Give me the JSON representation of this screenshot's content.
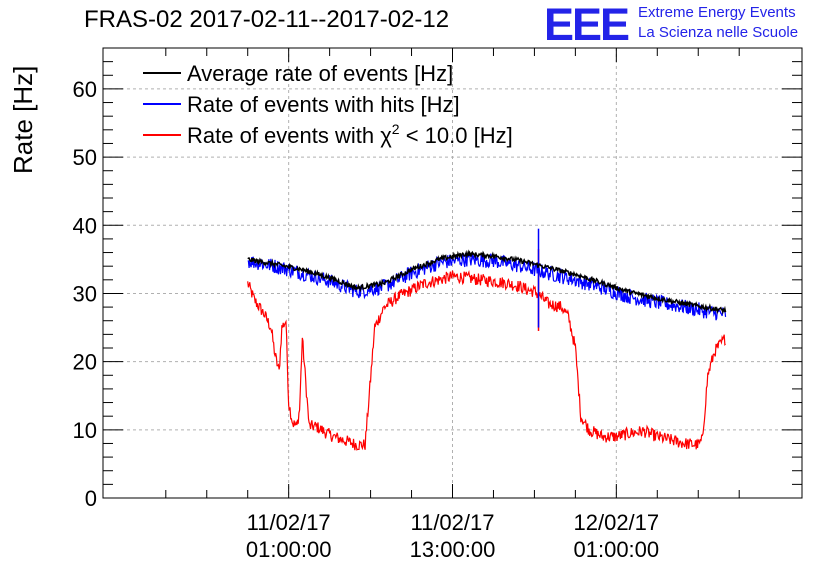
{
  "header": {
    "title": "FRAS-02 2017-02-11--2017-02-12",
    "logo": "EEE",
    "logo_line1": "Extreme Energy Events",
    "logo_line2": "La Scienza nelle Scuole"
  },
  "colors": {
    "average": "#000000",
    "hits": "#0000ff",
    "chi2": "#ff0000",
    "logo": "#2323e8",
    "grid": "#b0b0b0"
  },
  "chart_data": {
    "type": "line",
    "title": "FRAS-02 2017-02-11--2017-02-12",
    "xlabel": "",
    "ylabel": "Rate [Hz]",
    "x_unit": "hours since 2017-02-11 00:00:00",
    "xlim": [
      -12.6,
      38.6
    ],
    "ylim": [
      0,
      66
    ],
    "grid": true,
    "legend_position": "top-left",
    "yticks": [
      0,
      10,
      20,
      30,
      40,
      50,
      60
    ],
    "xticks": [
      {
        "value": 1,
        "line1": "11/02/17",
        "line2": "01:00:00"
      },
      {
        "value": 13,
        "line1": "11/02/17",
        "line2": "13:00:00"
      },
      {
        "value": 25,
        "line1": "12/02/17",
        "line2": "01:00:00"
      }
    ],
    "series": [
      {
        "name": "Average rate of events [Hz]",
        "key": "average",
        "x": [
          -2,
          0,
          2,
          4,
          6,
          8,
          10,
          12,
          14,
          16,
          18,
          20,
          22,
          24,
          26,
          28,
          30,
          32,
          33
        ],
        "values": [
          35,
          34.3,
          33.5,
          32.3,
          30.8,
          31.5,
          33.5,
          35,
          35.8,
          35.5,
          34.8,
          33.8,
          32.8,
          31.5,
          30.2,
          29.3,
          28.5,
          27.8,
          27.5
        ]
      },
      {
        "name": "Rate of events with hits [Hz]",
        "key": "hits",
        "x": [
          -2,
          0,
          2,
          4,
          6,
          8,
          10,
          12,
          14,
          16,
          18,
          20,
          22,
          24,
          26,
          28,
          30,
          32,
          33
        ],
        "values": [
          34.8,
          34,
          33,
          31.8,
          30.3,
          31,
          33,
          34.5,
          35,
          34.8,
          34,
          33,
          32,
          30.8,
          29.5,
          28.7,
          28,
          27.2,
          27
        ],
        "spike": {
          "x": 19.3,
          "max": 39.5,
          "min": 25
        }
      },
      {
        "name": "Rate of events with χ² < 10.0 [Hz]",
        "legend_before": "Rate of events with ",
        "legend_symbol": "χ",
        "legend_power": "2",
        "legend_after": " < 10.0 [Hz]",
        "key": "chi2",
        "x": [
          -2,
          -1.5,
          -0.8,
          -0.3,
          0,
          0.3,
          0.5,
          0.8,
          1.0,
          1.3,
          1.6,
          1.8,
          2.0,
          2.5,
          3.0,
          3.4,
          3.8,
          4.3,
          5.0,
          6.0,
          6.6,
          6.9,
          7.3,
          8,
          9,
          10,
          11,
          12,
          13,
          14,
          15,
          16,
          17,
          18,
          18.5,
          19.0,
          19.6,
          20,
          21,
          21.5,
          22.0,
          22.4,
          23,
          24,
          25,
          26,
          27,
          28,
          29,
          30,
          31,
          31.3,
          31.7,
          32.2,
          33
        ],
        "values": [
          31.5,
          29,
          27,
          25,
          21,
          18.5,
          25,
          26,
          14,
          11,
          10.5,
          13,
          23.5,
          10.5,
          10.5,
          10,
          9.5,
          9,
          8.5,
          7.8,
          7.8,
          15,
          25,
          28,
          29.5,
          30.5,
          31.5,
          32,
          32.5,
          32.3,
          32,
          31.8,
          31.5,
          31,
          30.5,
          30.3,
          29.3,
          28.5,
          28,
          26.5,
          22,
          12,
          10,
          9,
          9,
          9.5,
          9.8,
          9,
          8.5,
          8,
          7.8,
          8.5,
          18,
          21.5,
          23.5
        ],
        "spike": {
          "x": 19.3,
          "max": 36.5,
          "min": 24.5
        }
      }
    ]
  }
}
